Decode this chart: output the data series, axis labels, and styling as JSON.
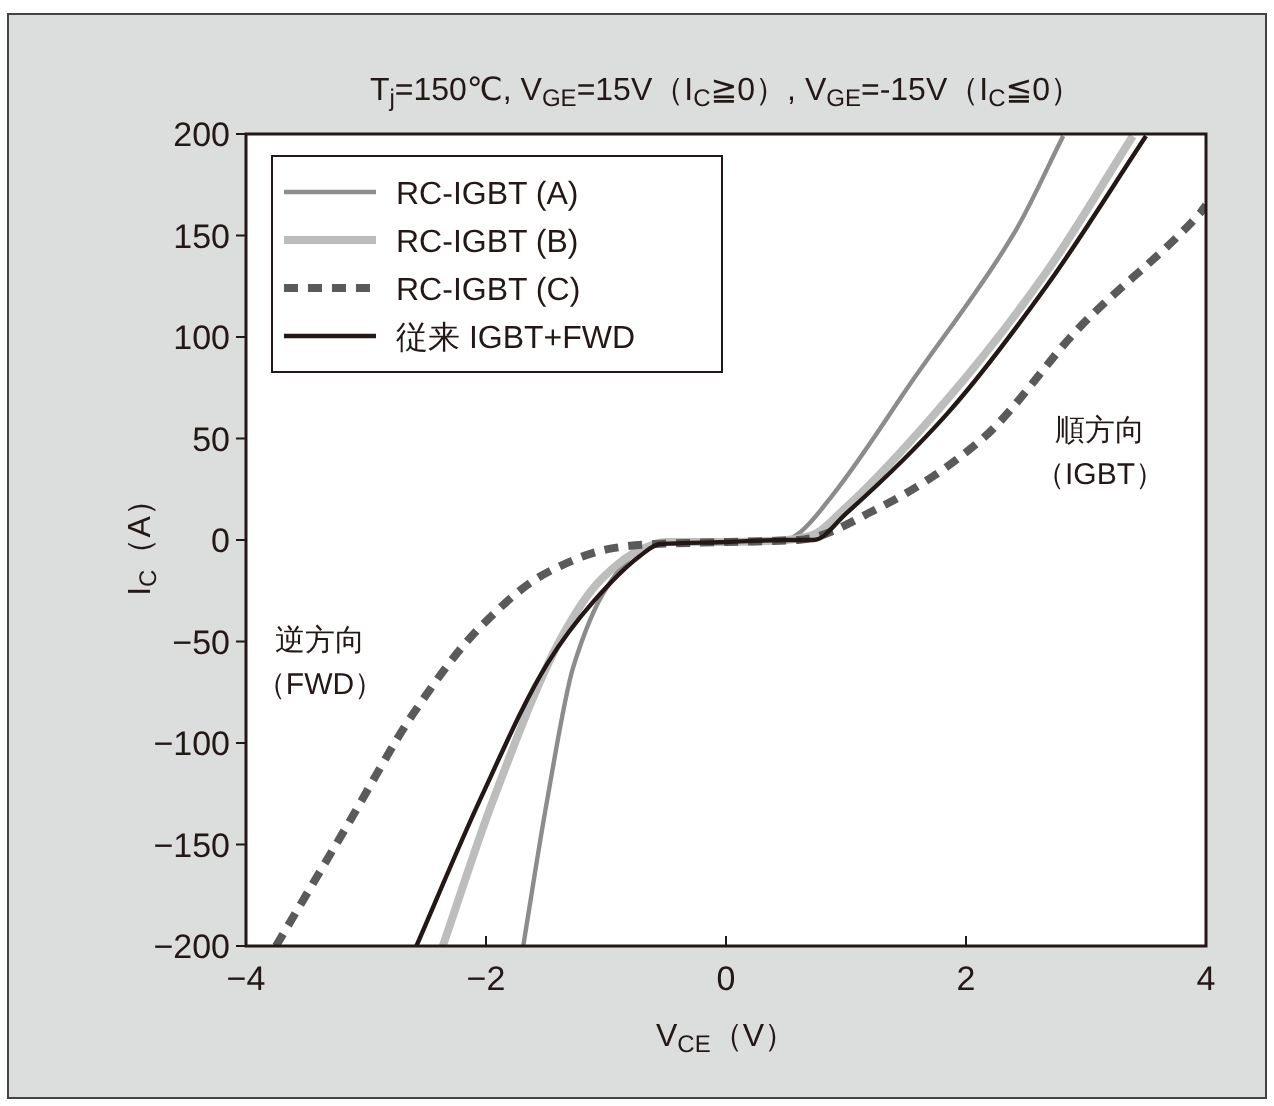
{
  "chart_data": {
    "type": "line",
    "title": "T$_{j}$=150℃, V$_{GE}$=15V（I$_{C}$≧0）, V$_{GE}$=-15V（I$_{C}$≦0）",
    "xlabel": "V$_{CE}$（V）",
    "ylabel": "I$_{C}$（A）",
    "xlim": [
      -4,
      4
    ],
    "ylim": [
      -200,
      200
    ],
    "xticks": [
      -4,
      -2,
      0,
      2,
      4
    ],
    "yticks": [
      -200,
      -150,
      -100,
      -50,
      0,
      50,
      100,
      150,
      200
    ],
    "grid": false,
    "legend": "top left",
    "marker": "none",
    "series": [
      {
        "name": "RC-IGBT (A)",
        "color": "#8c8c8c",
        "line_style": "solid",
        "x": [
          -1.69,
          -1.49,
          -1.27,
          -0.99,
          -0.72,
          -0.5,
          0,
          0.5,
          0.6,
          0.9,
          1.56,
          2.4,
          2.81
        ],
        "values": [
          -200,
          -128,
          -62,
          -23,
          -5,
          -1,
          -1,
          0,
          3,
          23,
          79,
          151,
          199
        ]
      },
      {
        "name": "RC-IGBT (B)",
        "color": "#bdbdbd",
        "line_style": "solid",
        "x": [
          -2.36,
          -1.94,
          -1.38,
          -1.05,
          -0.72,
          -0.5,
          0,
          0.5,
          0.7,
          1.0,
          1.84,
          2.67,
          3.39
        ],
        "values": [
          -200,
          -128,
          -49,
          -20,
          -5,
          -1,
          -1,
          0,
          2,
          16,
          69,
          132,
          199
        ]
      },
      {
        "name": "RC-IGBT (C)",
        "color": "#5a5a5a",
        "line_style": "dashed",
        "x": [
          -3.75,
          -3.16,
          -2.6,
          -2.05,
          -1.49,
          -0.94,
          -0.6,
          0,
          0.6,
          1.28,
          2.12,
          2.95,
          3.95,
          4
        ],
        "values": [
          -200,
          -141,
          -85,
          -43,
          -16,
          -4,
          -2,
          -1,
          0,
          16,
          49,
          105,
          161,
          165
        ]
      },
      {
        "name": "従来 IGBT+FWD",
        "color": "#231815",
        "line_style": "solid",
        "x": [
          -2.58,
          -2.05,
          -1.49,
          -1.1,
          -0.72,
          -0.55,
          0,
          0.5,
          0.73,
          1.0,
          1.84,
          2.67,
          3.5
        ],
        "values": [
          -200,
          -128,
          -61,
          -30,
          -8,
          -2,
          -1,
          0,
          0,
          13,
          62,
          125,
          199
        ]
      }
    ],
    "annotations": [
      "順方向（IGBT）",
      "逆方向（FWD）"
    ]
  }
}
